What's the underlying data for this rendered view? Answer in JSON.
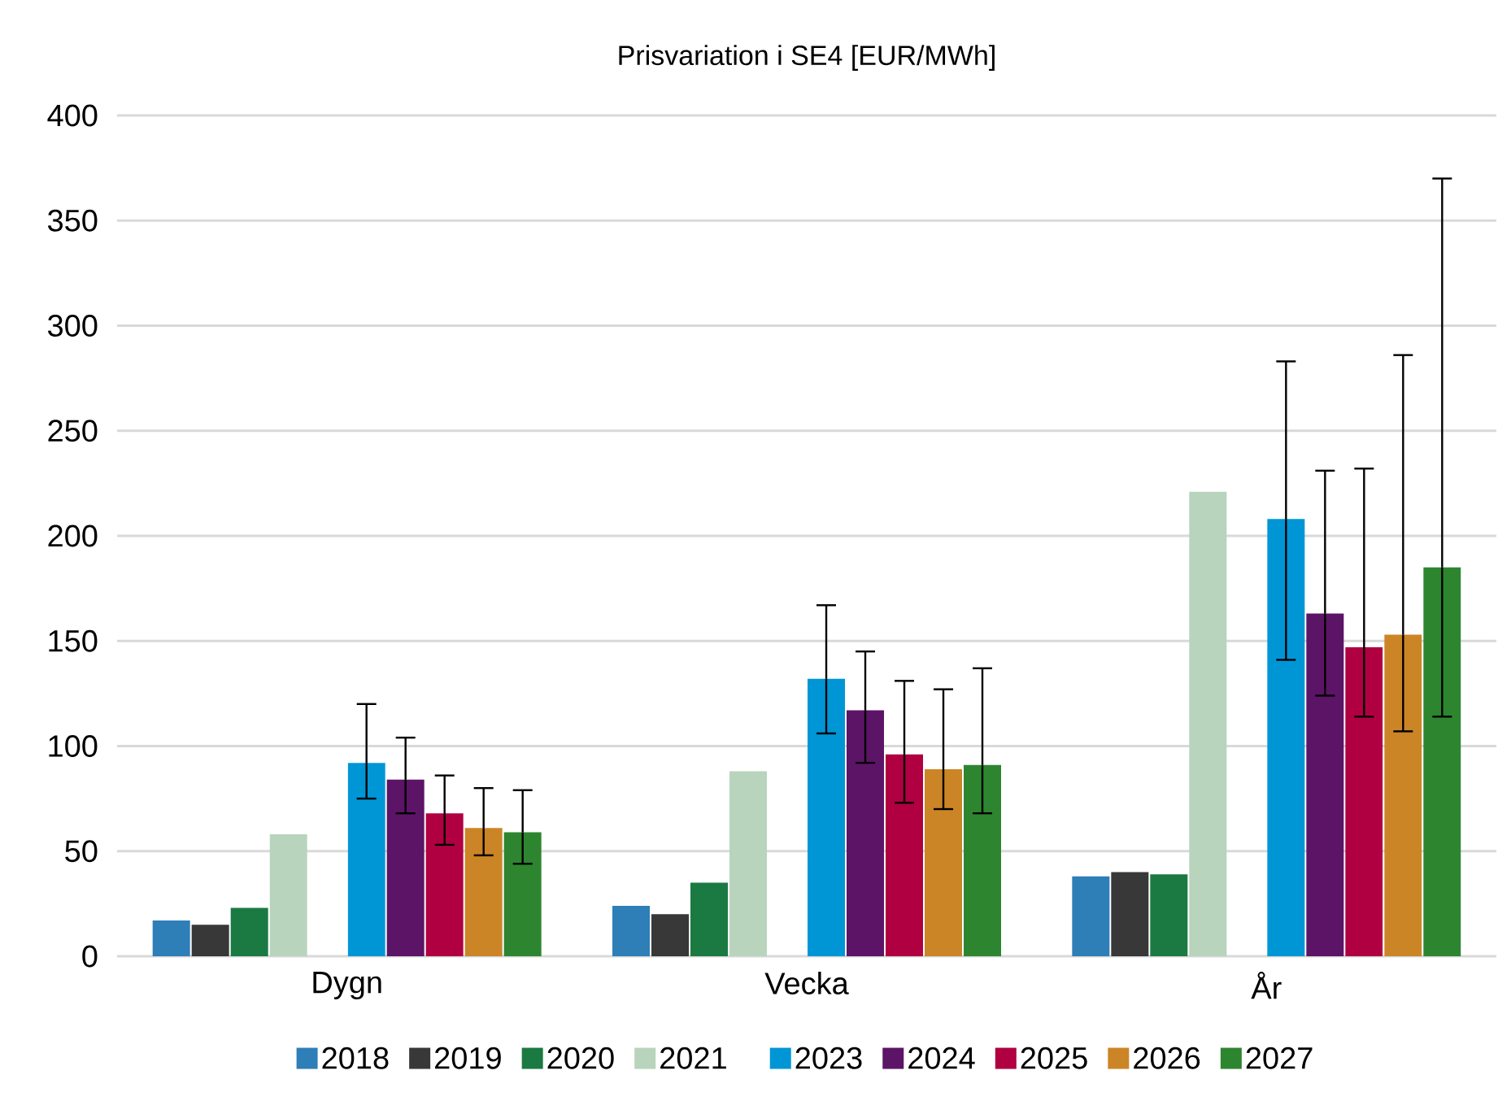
{
  "chart_data": {
    "type": "bar",
    "title": "Prisvariation i SE4 [EUR/MWh]",
    "categories": [
      "Dygn",
      "Vecka",
      "År"
    ],
    "series": [
      {
        "name": "2018",
        "color": "#2e7eb8",
        "values": [
          17,
          24,
          38
        ]
      },
      {
        "name": "2019",
        "color": "#383838",
        "values": [
          15,
          20,
          40
        ]
      },
      {
        "name": "2020",
        "color": "#1a7a41",
        "values": [
          23,
          35,
          39
        ]
      },
      {
        "name": "2021",
        "color": "#b8d4bc",
        "values": [
          58,
          88,
          221
        ]
      },
      {
        "values": [
          null,
          null,
          null
        ]
      },
      {
        "name": "2023",
        "color": "#0096d6",
        "values": [
          92,
          132,
          208
        ],
        "errors": [
          [
            75,
            120
          ],
          [
            106,
            167
          ],
          [
            141,
            283
          ]
        ]
      },
      {
        "name": "2024",
        "color": "#5c1466",
        "values": [
          84,
          117,
          163
        ],
        "errors": [
          [
            68,
            104
          ],
          [
            92,
            145
          ],
          [
            124,
            231
          ]
        ]
      },
      {
        "name": "2025",
        "color": "#b00041",
        "values": [
          68,
          96,
          147
        ],
        "errors": [
          [
            53,
            86
          ],
          [
            73,
            131
          ],
          [
            114,
            232
          ]
        ]
      },
      {
        "name": "2026",
        "color": "#cc8526",
        "values": [
          61,
          89,
          153
        ],
        "errors": [
          [
            48,
            80
          ],
          [
            70,
            127
          ],
          [
            107,
            286
          ]
        ]
      },
      {
        "name": "2027",
        "color": "#2e8530",
        "values": [
          59,
          91,
          185
        ],
        "errors": [
          [
            44,
            79
          ],
          [
            68,
            137
          ],
          [
            114,
            370
          ]
        ]
      }
    ],
    "ylim": [
      0,
      400
    ],
    "yticks": [
      0,
      50,
      100,
      150,
      200,
      250,
      300,
      350,
      400
    ],
    "grid": "y",
    "legend": "bottom"
  }
}
